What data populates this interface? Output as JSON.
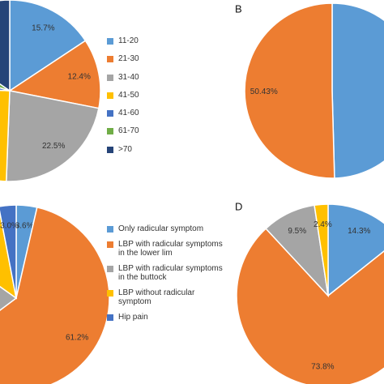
{
  "chart_data": [
    {
      "type": "pie",
      "categories": [
        "11-20",
        "21-30",
        "31-40",
        "41-50",
        "41-60",
        "61-70",
        ">70"
      ],
      "values": [
        15.7,
        12.4,
        22.5,
        25,
        4,
        5,
        15.4
      ],
      "value_labels": [
        "15.7%",
        "12.4%",
        "22.5%",
        null,
        null,
        null,
        null
      ],
      "colors": [
        "#5b9bd5",
        "#ed7d31",
        "#a5a5a5",
        "#ffc000",
        "#4472c4",
        "#70ad47",
        "#264478"
      ],
      "legend": true
    },
    {
      "type": "pie",
      "panel_label": "B",
      "categories": [
        null,
        null
      ],
      "values": [
        49.57,
        50.43
      ],
      "value_labels": [
        null,
        "50.43%"
      ],
      "colors": [
        "#5b9bd5",
        "#ed7d31"
      ],
      "legend": false
    },
    {
      "type": "pie",
      "categories": [
        "Only radicular symptom",
        "LBP with radicular symptoms in the lower lim",
        "LBP with radicular symptoms in the buttock",
        "LBP without radicular symptom",
        "Hip pain"
      ],
      "values": [
        3.6,
        61.2,
        20,
        12.2,
        3.0
      ],
      "value_labels": [
        "3.6%",
        "61.2%",
        null,
        null,
        "3.0%"
      ],
      "colors": [
        "#5b9bd5",
        "#ed7d31",
        "#a5a5a5",
        "#ffc000",
        "#4472c4"
      ],
      "legend": true
    },
    {
      "type": "pie",
      "panel_label": "D",
      "categories": [
        null,
        null,
        null,
        null
      ],
      "values": [
        14.3,
        73.8,
        9.5,
        2.4
      ],
      "value_labels": [
        "14.3%",
        "73.8%",
        "9.5%",
        "2.4%"
      ],
      "colors": [
        "#5b9bd5",
        "#ed7d31",
        "#a5a5a5",
        "#ffc000"
      ],
      "legend": false
    }
  ]
}
